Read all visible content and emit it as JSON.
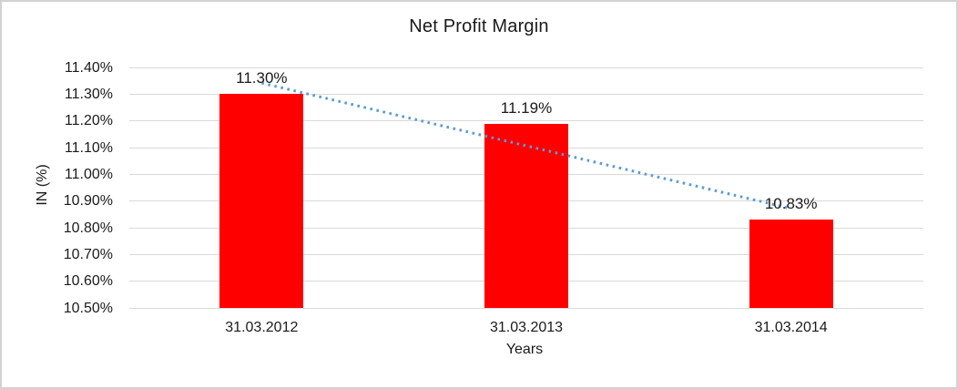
{
  "chart_data": {
    "type": "bar",
    "title": "Net Profit Margin",
    "categories": [
      "31.03.2012",
      "31.03.2013",
      "31.03.2014"
    ],
    "series": [
      {
        "name": "Net Profit Margin",
        "values": [
          11.3,
          11.19,
          10.83
        ]
      }
    ],
    "data_labels": [
      "11.30%",
      "11.19%",
      "10.83%"
    ],
    "xlabel": "Years",
    "ylabel": "IN (%)",
    "ylim": [
      10.5,
      11.4
    ],
    "ytick_step": 0.1,
    "ytick_labels": [
      "10.50%",
      "10.60%",
      "10.70%",
      "10.80%",
      "10.90%",
      "11.00%",
      "11.10%",
      "11.20%",
      "11.30%",
      "11.40%"
    ],
    "grid": true,
    "legend": false,
    "layout": {
      "legend_position": "none",
      "data_label_position": "above-bar"
    },
    "trendline": {
      "type": "linear",
      "style": "dotted",
      "color": "#5b9bd5"
    }
  },
  "colors": {
    "bar": "#ff0000",
    "trendline": "#5b9bd5",
    "gridline": "#d9d9d9",
    "border": "#d2d2d2",
    "text": "#1a1a1a",
    "background": "#ffffff"
  }
}
